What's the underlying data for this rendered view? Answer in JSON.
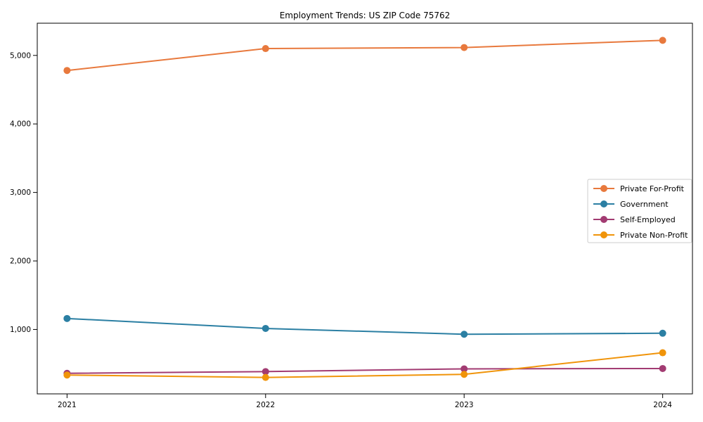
{
  "title": "Employment Trends: US ZIP Code 75762",
  "chart_data": {
    "type": "line",
    "title": "Employment Trends: US ZIP Code 75762",
    "x": [
      2021,
      2022,
      2023,
      2024
    ],
    "x_tick_labels": [
      "2021",
      "2022",
      "2023",
      "2024"
    ],
    "y_ticks": [
      1000,
      2000,
      3000,
      4000,
      5000
    ],
    "y_tick_labels": [
      "1,000",
      "2,000",
      "3,000",
      "4,000",
      "5,000"
    ],
    "xlim": [
      2020.85,
      2024.15
    ],
    "ylim": [
      60,
      5470
    ],
    "grid": false,
    "marker": "circle",
    "legend_position": "center right",
    "series": [
      {
        "name": "Private For-Profit",
        "color": "#e8793d",
        "values": [
          4780,
          5100,
          5115,
          5220
        ]
      },
      {
        "name": "Government",
        "color": "#2b7fa3",
        "values": [
          1160,
          1015,
          930,
          945
        ]
      },
      {
        "name": "Self-Employed",
        "color": "#a23b72",
        "values": [
          360,
          385,
          425,
          430
        ]
      },
      {
        "name": "Private Non-Profit",
        "color": "#f0940a",
        "values": [
          335,
          300,
          345,
          660
        ]
      }
    ]
  },
  "axes": {
    "frame_color": "#000000",
    "background": "#ffffff"
  },
  "legend": {
    "border_color": "#cccccc",
    "background": "#ffffff"
  }
}
